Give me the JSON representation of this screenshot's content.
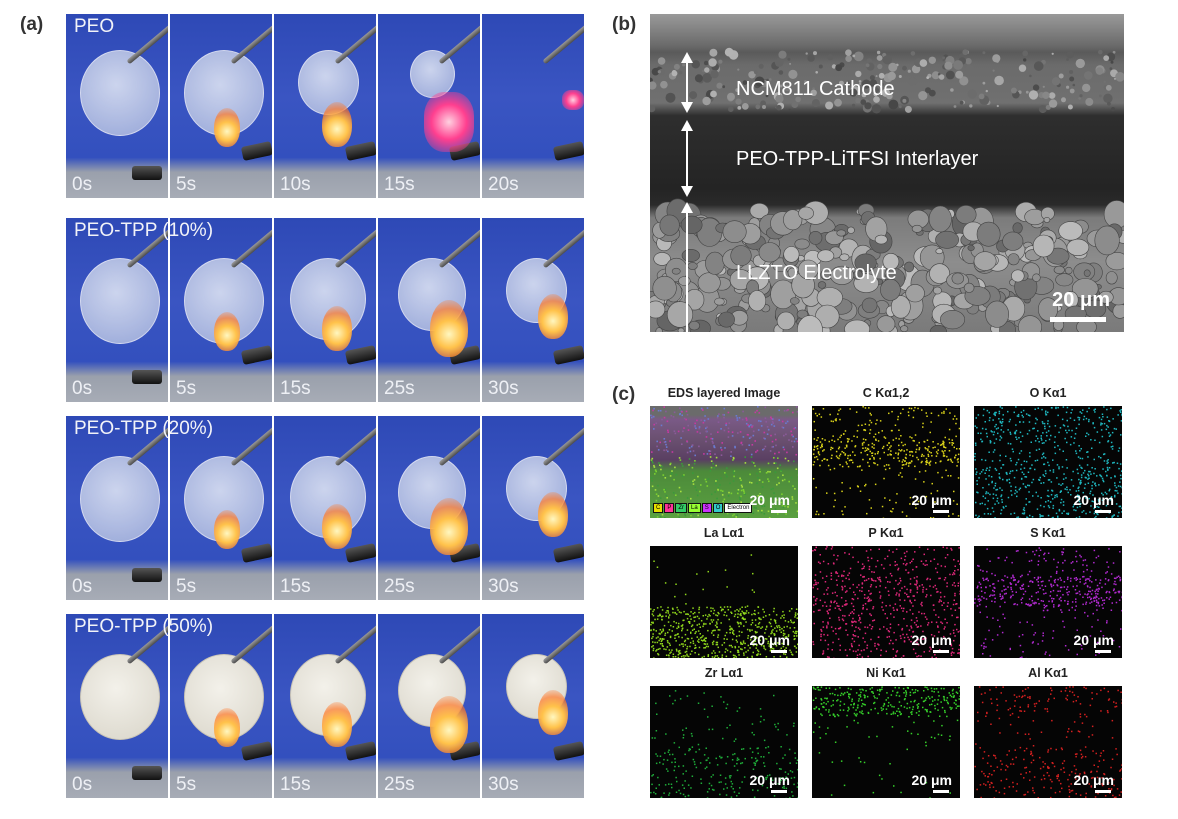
{
  "panels": {
    "a": "(a)",
    "b": "(b)",
    "c": "(c)"
  },
  "flame_tests": [
    {
      "name": "PEO",
      "times": [
        "0s",
        "5s",
        "10s",
        "15s",
        "20s"
      ]
    },
    {
      "name": "PEO-TPP (10%)",
      "times": [
        "0s",
        "5s",
        "15s",
        "25s",
        "30s"
      ]
    },
    {
      "name": "PEO-TPP (20%)",
      "times": [
        "0s",
        "5s",
        "15s",
        "25s",
        "30s"
      ]
    },
    {
      "name": "PEO-TPP (50%)",
      "times": [
        "0s",
        "5s",
        "15s",
        "25s",
        "30s"
      ]
    }
  ],
  "sem": {
    "layers": [
      "NCM811 Cathode",
      "PEO-TPP-LiTFSI Interlayer",
      "LLZTO Electrolyte"
    ],
    "scale": "20 μm"
  },
  "eds": {
    "scale": "20 μm",
    "legend": [
      "C",
      "P",
      "Zr",
      "La",
      "S",
      "O",
      "Electron"
    ],
    "legend_colors": [
      "#e8e000",
      "#ff3399",
      "#33cc66",
      "#99ff33",
      "#cc33ff",
      "#33cccc",
      "#ffffff"
    ],
    "maps": [
      {
        "title": "EDS layered Image",
        "kind": "layered"
      },
      {
        "title": "C Kα1,2",
        "color": "#d9d21a",
        "kind": "C"
      },
      {
        "title": "O Kα1",
        "color": "#1fb8c0",
        "kind": "O"
      },
      {
        "title": "La Lα1",
        "color": "#8fd61c",
        "kind": "La"
      },
      {
        "title": "P Kα1",
        "color": "#e0287a",
        "kind": "P"
      },
      {
        "title": "S Kα1",
        "color": "#b12ad0",
        "kind": "S"
      },
      {
        "title": "Zr Lα1",
        "color": "#1fae3a",
        "kind": "Zr"
      },
      {
        "title": "Ni Kα1",
        "color": "#35d02a",
        "kind": "Ni"
      },
      {
        "title": "Al Kα1",
        "color": "#d42020",
        "kind": "Al"
      }
    ]
  }
}
